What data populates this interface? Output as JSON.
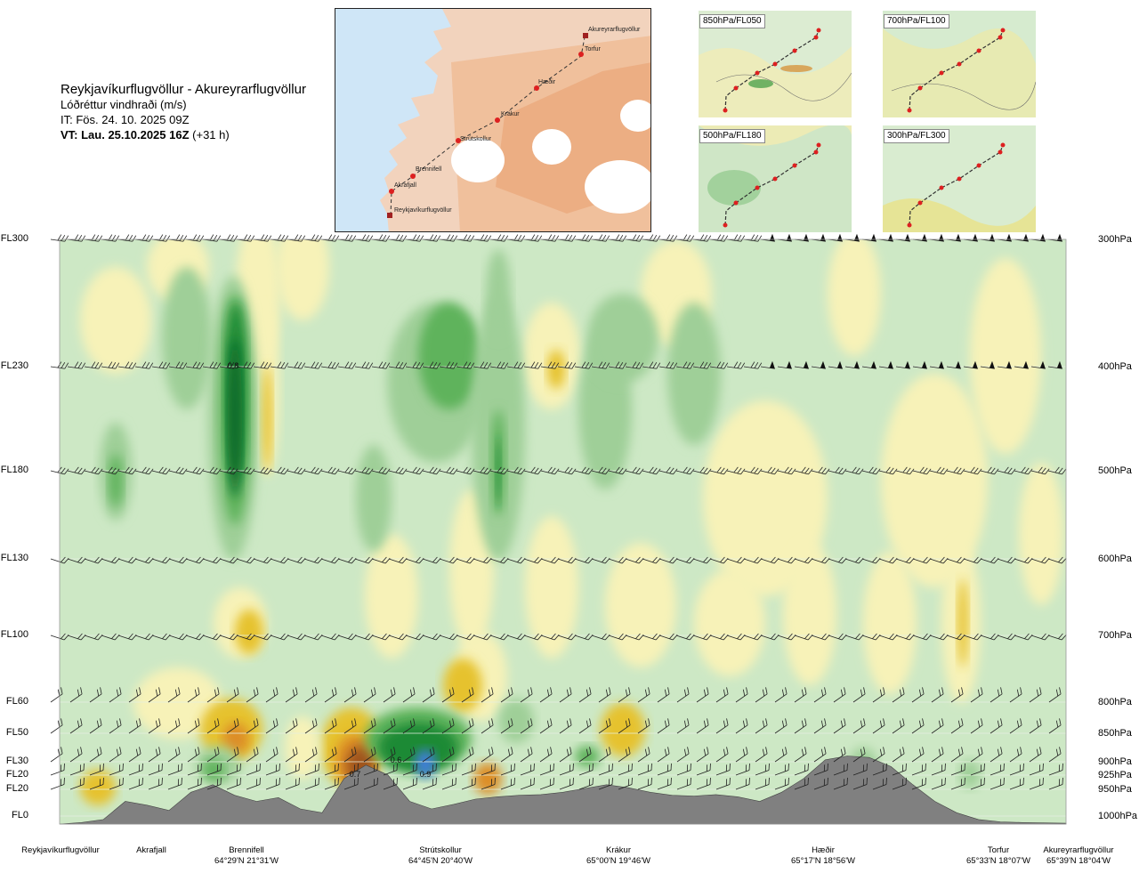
{
  "header": {
    "route": "Reykjavíkurflugvöllur - Akureyrarflugvöllur",
    "variable": "Lóðréttur vindhraði (m/s)",
    "it": "IT: Fös. 24. 10. 2025 09Z",
    "vt_bold": "VT: Lau. 25.10.2025 16Z",
    "vt_suffix": "(+31 h)"
  },
  "route_map": {
    "places": [
      "Akureyrarflugvöllur",
      "Torfur",
      "Hæðir",
      "Krákur",
      "Strútskollur",
      "Brennifell",
      "Akrafjall",
      "Reykjavíkurflugvöllur"
    ]
  },
  "mini_maps": [
    "850hPa/FL050",
    "700hPa/FL100",
    "500hPa/FL180",
    "300hPa/FL300"
  ],
  "colors": {
    "light_green": "#cde8c5",
    "mid_green": "#9fcf98",
    "green": "#5fb35b",
    "dark_green": "#1e8a34",
    "deep_green": "#0f6b2a",
    "blue": "#3f7fd6",
    "light_yellow": "#f7f2b8",
    "yellow": "#efe070",
    "gold": "#e6c22e",
    "orange": "#dd8e26",
    "brown": "#a0551c",
    "terrain": "#808080",
    "map_land": "#f2b98f",
    "map_water": "#cfe6f7",
    "map_ice": "#ffffff"
  },
  "chart_data": {
    "type": "heatmap",
    "title": "Lóðréttur vindhraði (m/s)",
    "flight_levels": [
      "FL300",
      "FL230",
      "FL180",
      "FL130",
      "FL100",
      "FL60",
      "FL50",
      "FL30",
      "FL20",
      "FL20",
      "FL0"
    ],
    "pressure_levels": [
      "300hPa",
      "400hPa",
      "500hPa",
      "600hPa",
      "700hPa",
      "800hPa",
      "850hPa",
      "900hPa",
      "925hPa",
      "950hPa",
      "1000hPa"
    ],
    "pressure_values": [
      300,
      400,
      500,
      600,
      700,
      800,
      850,
      900,
      925,
      950,
      1000
    ],
    "ylim": [
      1000,
      300
    ],
    "waypoints": [
      {
        "name": "Reykjavíkurflugvöllur",
        "coord": ""
      },
      {
        "name": "Akrafjall",
        "coord": ""
      },
      {
        "name": "Brennifell",
        "coord": "64°29'N 21°31'W"
      },
      {
        "name": "Strútskollur",
        "coord": "64°45'N 20°40'W"
      },
      {
        "name": "Krákur",
        "coord": "65°00'N 19°46'W"
      },
      {
        "name": "Hæðir",
        "coord": "65°17'N 18°56'W"
      },
      {
        "name": "Torfur",
        "coord": "65°33'N 18°07'W"
      },
      {
        "name": "Akureyrarflugvöllur",
        "coord": "65°39'N 18°04'W"
      }
    ],
    "route_fraction": [
      0,
      0.08,
      0.19,
      0.39,
      0.58,
      0.76,
      0.94,
      1.0
    ],
    "annotations": [
      "0.8",
      "0.6",
      "0.7",
      "0.9"
    ],
    "terrain_m": [
      0,
      20,
      60,
      300,
      250,
      180,
      420,
      520,
      380,
      300,
      350,
      200,
      150,
      600,
      780,
      650,
      300,
      200,
      260,
      330,
      360,
      380,
      390,
      420,
      470,
      520,
      480,
      420,
      380,
      370,
      390,
      360,
      300,
      420,
      600,
      850,
      900,
      880,
      760,
      520,
      300,
      150,
      60,
      30,
      20,
      15,
      10
    ],
    "grid": true
  }
}
